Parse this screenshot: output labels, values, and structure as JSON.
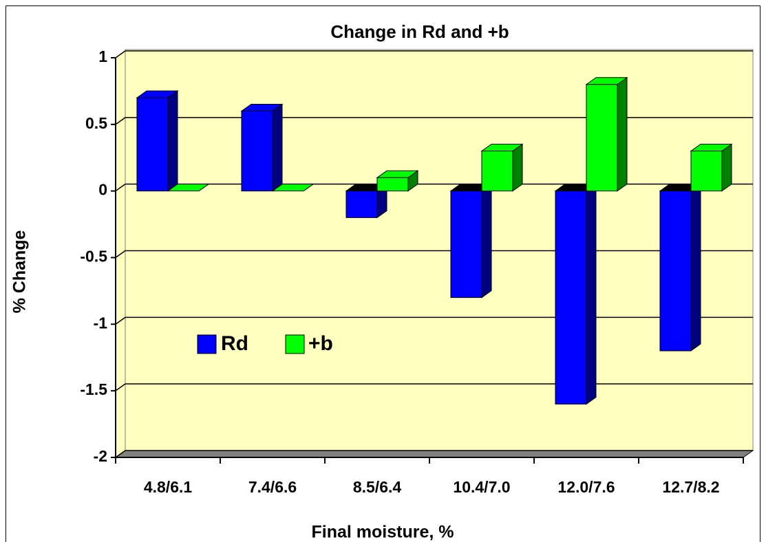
{
  "chart_data": {
    "type": "bar3d",
    "title": "Change in Rd and +b",
    "xlabel": "Final moisture, %",
    "ylabel": "% Change",
    "categories": [
      "4.8/6.1",
      "7.4/6.6",
      "8.5/6.4",
      "10.4/7.0",
      "12.0/7.6",
      "12.7/8.2"
    ],
    "series": [
      {
        "name": "Rd",
        "color": "#0000ff",
        "side": "#000080",
        "values": [
          0.7,
          0.6,
          -0.2,
          -0.8,
          -1.6,
          -1.2
        ]
      },
      {
        "name": "+b",
        "color": "#00ff00",
        "side": "#008000",
        "values": [
          0,
          0,
          0.1,
          0.3,
          0.8,
          0.3
        ]
      }
    ],
    "ylim": [
      -2,
      1
    ],
    "yticks": [
      -2,
      -1.5,
      -1,
      -0.5,
      0,
      0.5,
      1
    ],
    "grid": true
  }
}
